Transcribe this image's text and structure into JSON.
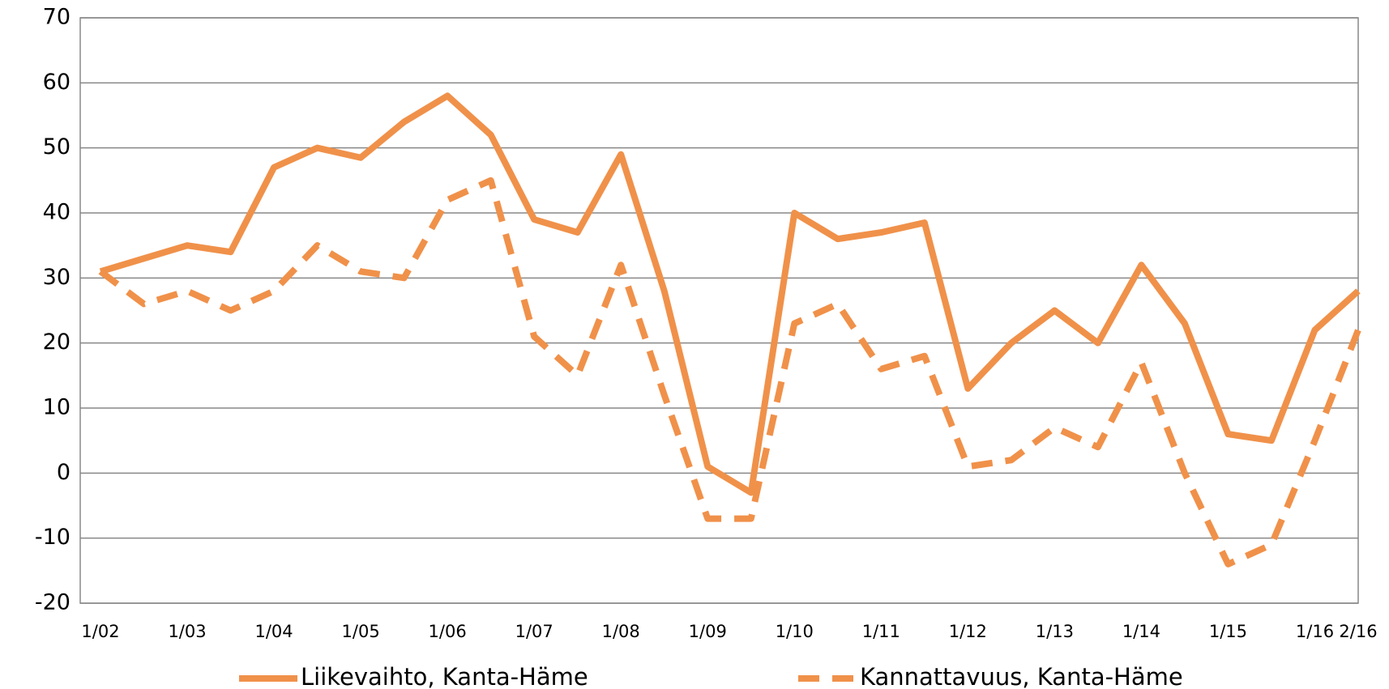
{
  "chart_data": {
    "type": "line",
    "categories": [
      "1/02",
      null,
      "1/03",
      null,
      "1/04",
      null,
      "1/05",
      null,
      "1/06",
      null,
      "1/07",
      null,
      "1/08",
      null,
      "1/09",
      null,
      "1/10",
      null,
      "1/11",
      null,
      "1/12",
      null,
      "1/13",
      null,
      "1/14",
      null,
      "1/15",
      null,
      "1/16",
      "2/16"
    ],
    "series": [
      {
        "name": "Liikevaihto, Kanta-Häme",
        "color": "#f0914a",
        "dash": false,
        "values": [
          31,
          33,
          35,
          34,
          47,
          50,
          48.5,
          54,
          58,
          52,
          39,
          37,
          49,
          28,
          1,
          -3,
          40,
          36,
          37,
          38.5,
          13,
          20,
          25,
          20,
          32,
          23,
          6,
          5,
          22,
          28
        ]
      },
      {
        "name": "Kannattavuus, Kanta-Häme",
        "color": "#f0914a",
        "dash": true,
        "values": [
          31,
          26,
          28,
          25,
          28,
          35,
          31,
          30,
          42,
          45,
          21,
          15,
          32,
          12,
          -7,
          -7,
          23,
          26,
          16,
          18,
          1,
          2,
          7,
          4,
          17,
          0,
          -14,
          -11,
          5,
          22
        ]
      }
    ],
    "ylim": [
      -20,
      70
    ],
    "yticks": [
      -20,
      -10,
      0,
      10,
      20,
      30,
      40,
      50,
      60,
      70
    ],
    "grid": true
  }
}
